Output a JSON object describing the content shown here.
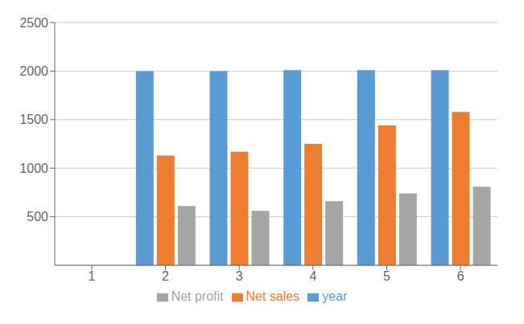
{
  "chart_data": {
    "type": "bar",
    "categories": [
      "1",
      "2",
      "3",
      "4",
      "5",
      "6"
    ],
    "series": [
      {
        "name": "year",
        "color": "#5B9BD5",
        "values": [
          0,
          2000,
          2000,
          2010,
          2010,
          2010
        ]
      },
      {
        "name": "Net sales",
        "color": "#ED7D31",
        "values": [
          0,
          1130,
          1170,
          1250,
          1440,
          1580
        ]
      },
      {
        "name": "Net profit",
        "color": "#A5A5A5",
        "values": [
          0,
          610,
          560,
          660,
          740,
          810
        ]
      }
    ],
    "ylim": [
      0,
      2500
    ],
    "yticks": [
      500,
      1000,
      1500,
      2000,
      2500
    ],
    "grid": true,
    "legend": "bottom"
  }
}
